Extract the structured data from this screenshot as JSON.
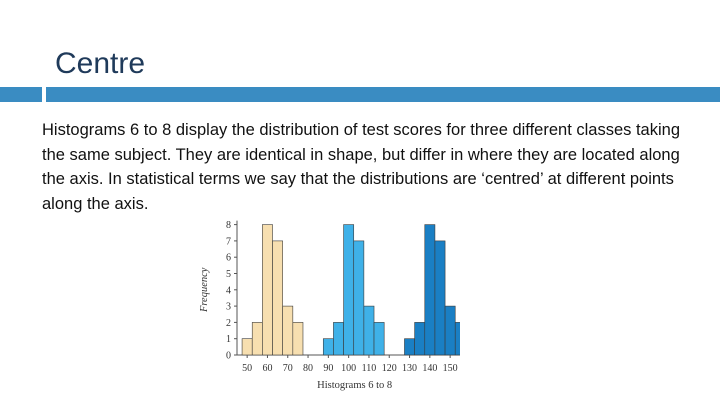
{
  "slide": {
    "title": "Centre",
    "body": "Histograms 6 to 8 display the distribution of test scores for three different classes taking the same subject. They are identical in shape, but differ in where they are located along the axis. In statistical terms we say that the distributions are ‘centred’ at different points along the axis."
  },
  "colors": {
    "accent": "#3a8cc2",
    "hist6": "#f7dfb0",
    "hist7": "#3fb1e8",
    "hist8": "#1a7fc4"
  },
  "chart_data": {
    "type": "bar",
    "xlabel": "Histograms 6 to 8",
    "ylabel": "Frequency",
    "ylim": [
      0,
      8
    ],
    "xlim": [
      45,
      155
    ],
    "grid": false,
    "y_ticks": [
      0,
      1,
      2,
      3,
      4,
      5,
      6,
      7,
      8
    ],
    "x_ticks": [
      50,
      60,
      70,
      80,
      90,
      100,
      110,
      120,
      130,
      140,
      150
    ],
    "series": [
      {
        "color_key": "hist6",
        "x": [
          50,
          55,
          60,
          65,
          70,
          75
        ],
        "values": [
          1,
          2,
          8,
          7,
          3,
          2
        ]
      },
      {
        "color_key": "hist7",
        "x": [
          90,
          95,
          100,
          105,
          110,
          115
        ],
        "values": [
          1,
          2,
          8,
          7,
          3,
          2
        ]
      },
      {
        "color_key": "hist8",
        "x": [
          130,
          135,
          140,
          145,
          150,
          155
        ],
        "values": [
          1,
          2,
          8,
          7,
          3,
          2
        ]
      }
    ]
  }
}
